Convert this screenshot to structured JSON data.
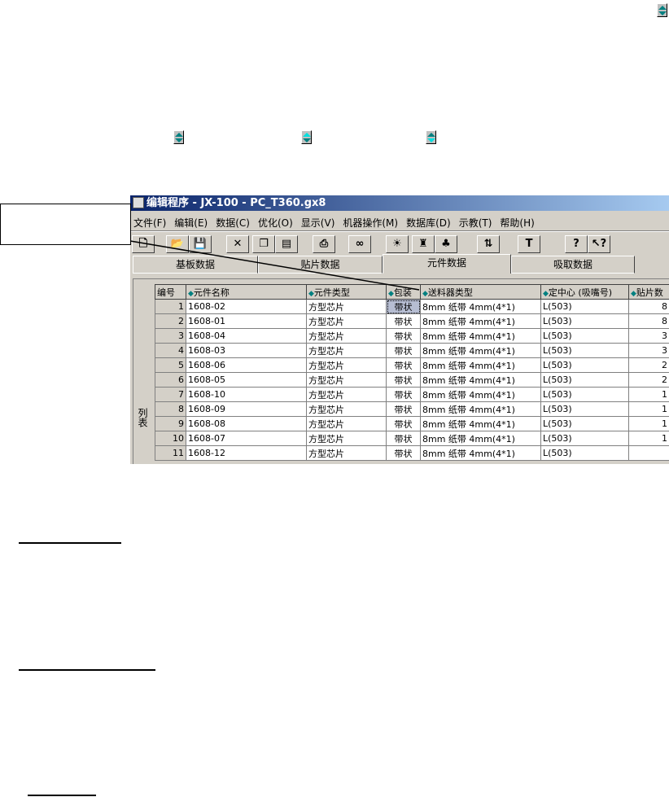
{
  "window": {
    "title": "编辑程序 - JX-100 - PC_T360.gx8"
  },
  "menu": [
    "文件(F)",
    "编辑(E)",
    "数据(C)",
    "优化(O)",
    "显示(V)",
    "机器操作(M)",
    "数据库(D)",
    "示教(T)",
    "帮助(H)"
  ],
  "toolbar": [
    {
      "icon": "new-file-icon",
      "glyph": "🗋"
    },
    {
      "icon": "open-folder-icon",
      "glyph": "📂"
    },
    {
      "icon": "save-icon",
      "glyph": "💾"
    },
    {
      "icon": "delete-icon",
      "glyph": "✕"
    },
    {
      "icon": "copy-icon",
      "glyph": "❐"
    },
    {
      "icon": "paste-icon",
      "glyph": "▤"
    },
    {
      "icon": "print-icon",
      "glyph": "⎙"
    },
    {
      "icon": "find-binoculars-icon",
      "glyph": "∞"
    },
    {
      "icon": "lightbulb-icon",
      "glyph": "☀"
    },
    {
      "icon": "nozzle-icon",
      "glyph": "♜"
    },
    {
      "icon": "components-icon",
      "glyph": "♣"
    },
    {
      "icon": "swap-icon",
      "glyph": "⇅"
    },
    {
      "icon": "text-icon",
      "glyph": "T"
    },
    {
      "icon": "help-icon",
      "glyph": "?"
    },
    {
      "icon": "context-help-icon",
      "glyph": "↖?"
    }
  ],
  "tabs": [
    "基板数据",
    "贴片数据",
    "元件数据",
    "吸取数据"
  ],
  "active_tab": "元件数据",
  "side_label": "列表",
  "table": {
    "headers": [
      "编号",
      "元件名称",
      "元件类型",
      "包装",
      "送料器类型",
      "定中心 (吸嘴号)",
      "贴片数"
    ],
    "rows": [
      [
        "1",
        "1608-02",
        "方型芯片",
        "带状",
        "8mm 纸带  4mm(4*1)",
        "L(503)",
        "8"
      ],
      [
        "2",
        "1608-01",
        "方型芯片",
        "带状",
        "8mm 纸带  4mm(4*1)",
        "L(503)",
        "8"
      ],
      [
        "3",
        "1608-04",
        "方型芯片",
        "带状",
        "8mm 纸带  4mm(4*1)",
        "L(503)",
        "3"
      ],
      [
        "4",
        "1608-03",
        "方型芯片",
        "带状",
        "8mm 纸带  4mm(4*1)",
        "L(503)",
        "3"
      ],
      [
        "5",
        "1608-06",
        "方型芯片",
        "带状",
        "8mm 纸带  4mm(4*1)",
        "L(503)",
        "2"
      ],
      [
        "6",
        "1608-05",
        "方型芯片",
        "带状",
        "8mm 纸带  4mm(4*1)",
        "L(503)",
        "2"
      ],
      [
        "7",
        "1608-10",
        "方型芯片",
        "带状",
        "8mm 纸带  4mm(4*1)",
        "L(503)",
        "1"
      ],
      [
        "8",
        "1608-09",
        "方型芯片",
        "带状",
        "8mm 纸带  4mm(4*1)",
        "L(503)",
        "1"
      ],
      [
        "9",
        "1608-08",
        "方型芯片",
        "带状",
        "8mm 纸带  4mm(4*1)",
        "L(503)",
        "1"
      ],
      [
        "10",
        "1608-07",
        "方型芯片",
        "带状",
        "8mm 纸带  4mm(4*1)",
        "L(503)",
        "1"
      ],
      [
        "11",
        "1608-12",
        "方型芯片",
        "带状",
        "8mm 纸带  4mm(4*1)",
        "L(503)",
        ""
      ]
    ]
  },
  "sort_icons": {
    "normal": "#008080",
    "highlight": "#00e0e0"
  }
}
